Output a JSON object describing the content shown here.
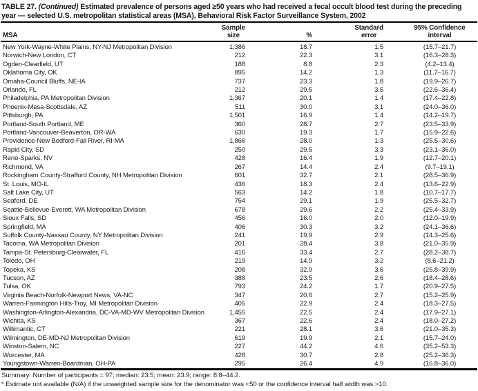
{
  "title": {
    "label": "TABLE 27.",
    "continued": "(Continued)",
    "text": "Estimated prevalence of persons aged ≥50 years who had received a fecal occult blood test during the preceding year — selected U.S. metropolitan statistical areas (MSA), Behavioral Risk Factor Surveillance System, 2002"
  },
  "table": {
    "columns": {
      "msa": "MSA",
      "sample_line1": "Sample",
      "sample_line2": "size",
      "percent": "%",
      "se_line1": "Standard",
      "se_line2": "error",
      "ci_line1": "95% Confidence",
      "ci_line2": "interval"
    },
    "rows": [
      {
        "msa": "New York-Wayne-White Plains, NY-NJ Metropolitan Division",
        "sample_size": "1,386",
        "percent": "18.7",
        "standard_error": "1.5",
        "confidence_interval": "(15.7–21.7)"
      },
      {
        "msa": "Norwich-New London, CT",
        "sample_size": "212",
        "percent": "22.3",
        "standard_error": "3.1",
        "confidence_interval": "(16.3–28.3)"
      },
      {
        "msa": "Ogden-Clearfield, UT",
        "sample_size": "188",
        "percent": "8.8",
        "standard_error": "2.3",
        "confidence_interval": "(4.2–13.4)"
      },
      {
        "msa": "Oklahoma City, OK",
        "sample_size": "895",
        "percent": "14.2",
        "standard_error": "1.3",
        "confidence_interval": "(11.7–16.7)"
      },
      {
        "msa": "Omaha-Council Bluffs, NE-IA",
        "sample_size": "737",
        "percent": "23.3",
        "standard_error": "1.8",
        "confidence_interval": "(19.9–26.7)"
      },
      {
        "msa": "Orlando, FL",
        "sample_size": "212",
        "percent": "29.5",
        "standard_error": "3.5",
        "confidence_interval": "(22.6–36.4)"
      },
      {
        "msa": "Philadelphia, PA Metropolitan Division",
        "sample_size": "1,367",
        "percent": "20.1",
        "standard_error": "1.4",
        "confidence_interval": "(17.4–22.8)"
      },
      {
        "msa": "Phoenix-Mesa-Scottsdale, AZ",
        "sample_size": "511",
        "percent": "30.0",
        "standard_error": "3.1",
        "confidence_interval": "(24.0–36.0)"
      },
      {
        "msa": "Pittsburgh, PA",
        "sample_size": "1,501",
        "percent": "16.9",
        "standard_error": "1.4",
        "confidence_interval": "(14.2–19.7)"
      },
      {
        "msa": "Portland-South Portland, ME",
        "sample_size": "360",
        "percent": "28.7",
        "standard_error": "2.7",
        "confidence_interval": "(23.5–33.9)"
      },
      {
        "msa": "Portland-Vancouver-Beaverton, OR-WA",
        "sample_size": "630",
        "percent": "19.3",
        "standard_error": "1.7",
        "confidence_interval": "(15.9–22.6)"
      },
      {
        "msa": "Providence-New Bedford-Fall River, RI-MA",
        "sample_size": "1,866",
        "percent": "28.0",
        "standard_error": "1.3",
        "confidence_interval": "(25.5–30.6)"
      },
      {
        "msa": "Rapid City, SD",
        "sample_size": "250",
        "percent": "29.5",
        "standard_error": "3.3",
        "confidence_interval": "(23.1–36.0)"
      },
      {
        "msa": "Reno-Sparks, NV",
        "sample_size": "428",
        "percent": "16.4",
        "standard_error": "1.9",
        "confidence_interval": "(12.7–20.1)"
      },
      {
        "msa": "Richmond, VA",
        "sample_size": "267",
        "percent": "14.4",
        "standard_error": "2.4",
        "confidence_interval": "(9.7–19.1)"
      },
      {
        "msa": "Rockingham County-Strafford County, NH Metropolitan Division",
        "sample_size": "601",
        "percent": "32.7",
        "standard_error": "2.1",
        "confidence_interval": "(28.5–36.9)"
      },
      {
        "msa": "St. Louis, MO-IL",
        "sample_size": "436",
        "percent": "18.3",
        "standard_error": "2.4",
        "confidence_interval": "(13.6–22.9)"
      },
      {
        "msa": "Salt Lake City, UT",
        "sample_size": "563",
        "percent": "14.2",
        "standard_error": "1.8",
        "confidence_interval": "(10.7–17.7)"
      },
      {
        "msa": "Seaford, DE",
        "sample_size": "754",
        "percent": "29.1",
        "standard_error": "1.9",
        "confidence_interval": "(25.5–32.7)"
      },
      {
        "msa": "Seattle-Bellevue-Everett, WA Metropolitan Division",
        "sample_size": "678",
        "percent": "29.6",
        "standard_error": "2.2",
        "confidence_interval": "(25.4–33.9)"
      },
      {
        "msa": "Sioux Falls, SD",
        "sample_size": "456",
        "percent": "16.0",
        "standard_error": "2.0",
        "confidence_interval": "(12.0–19.9)"
      },
      {
        "msa": "Springfield, MA",
        "sample_size": "406",
        "percent": "30.3",
        "standard_error": "3.2",
        "confidence_interval": "(24.1–36.6)"
      },
      {
        "msa": "Suffolk County-Nassau County, NY Metropolitan Division",
        "sample_size": "241",
        "percent": "19.9",
        "standard_error": "2.9",
        "confidence_interval": "(14.3–25.6)"
      },
      {
        "msa": "Tacoma, WA Metropolitan Division",
        "sample_size": "201",
        "percent": "28.4",
        "standard_error": "3.8",
        "confidence_interval": "(21.0–35.9)"
      },
      {
        "msa": "Tampa-St. Petersburg-Clearwater, FL",
        "sample_size": "416",
        "percent": "33.4",
        "standard_error": "2.7",
        "confidence_interval": "(28.2–38.7)"
      },
      {
        "msa": "Toledo, OH",
        "sample_size": "219",
        "percent": "14.9",
        "standard_error": "3.2",
        "confidence_interval": "(8.6–21.2)"
      },
      {
        "msa": "Topeka, KS",
        "sample_size": "208",
        "percent": "32.9",
        "standard_error": "3.6",
        "confidence_interval": "(25.8–39.9)"
      },
      {
        "msa": "Tucson, AZ",
        "sample_size": "388",
        "percent": "23.5",
        "standard_error": "2.6",
        "confidence_interval": "(18.4–28.6)"
      },
      {
        "msa": "Tulsa, OK",
        "sample_size": "793",
        "percent": "24.2",
        "standard_error": "1.7",
        "confidence_interval": "(20.9–27.5)"
      },
      {
        "msa": "Virginia Beach-Norfolk-Newport News, VA-NC",
        "sample_size": "347",
        "percent": "20.6",
        "standard_error": "2.7",
        "confidence_interval": "(15.2–25.9)"
      },
      {
        "msa": "Warren-Farmington Hills-Troy, MI Metropolitan Division",
        "sample_size": "405",
        "percent": "22.9",
        "standard_error": "2.4",
        "confidence_interval": "(18.3–27.5)"
      },
      {
        "msa": "Washington-Arlington-Alexandria, DC-VA-MD-WV Metropolitan Division",
        "sample_size": "1,455",
        "percent": "22.5",
        "standard_error": "2.4",
        "confidence_interval": "(17.9–27.1)"
      },
      {
        "msa": "Wichita, KS",
        "sample_size": "367",
        "percent": "22.6",
        "standard_error": "2.4",
        "confidence_interval": "(18.0–27.2)"
      },
      {
        "msa": "Willimantic, CT",
        "sample_size": "221",
        "percent": "28.1",
        "standard_error": "3.6",
        "confidence_interval": "(21.0–35.3)"
      },
      {
        "msa": "Wilmington, DE-MD-NJ Metropolitan Division",
        "sample_size": "619",
        "percent": "19.9",
        "standard_error": "2.1",
        "confidence_interval": "(15.7–24.0)"
      },
      {
        "msa": "Winston-Salem, NC",
        "sample_size": "227",
        "percent": "44.2",
        "standard_error": "4.6",
        "confidence_interval": "(35.2–53.3)"
      },
      {
        "msa": "Worcester, MA",
        "sample_size": "428",
        "percent": "30.7",
        "standard_error": "2.8",
        "confidence_interval": "(25.2–36.3)"
      },
      {
        "msa": "Youngstown-Warren-Boardman, OH-PA",
        "sample_size": "295",
        "percent": "26.4",
        "standard_error": "4.9",
        "confidence_interval": "(16.8–36.0)"
      }
    ]
  },
  "footer": {
    "summary": "Summary: Number of participants = 97; median: 23.5; mean: 23.9; range: 8.8–44.2.",
    "footnote": "* Estimate not available (N/A) if the unweighted sample size for the denominator was <50 or the confidence interval half width was >10."
  },
  "colors": {
    "background": "#ffffff",
    "text": "#1a1a1a",
    "rule": "#000000"
  }
}
